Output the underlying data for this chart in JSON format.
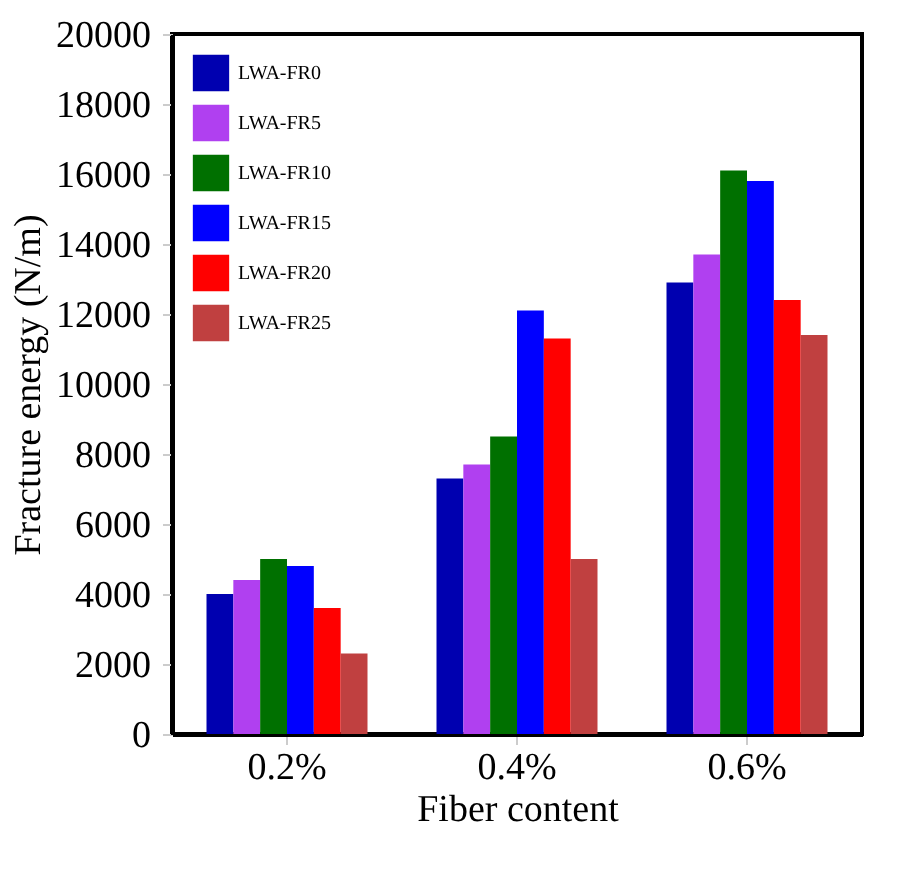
{
  "chart_data": {
    "type": "bar",
    "xlabel": "Fiber content",
    "ylabel": "Fracture energy (N/m)",
    "categories": [
      "0.2%",
      "0.4%",
      "0.6%"
    ],
    "series": [
      {
        "name": "LWA-FR0",
        "color": "#0000b0",
        "values": [
          4000,
          7300,
          12900
        ]
      },
      {
        "name": "LWA-FR5",
        "color": "#b040f0",
        "values": [
          4400,
          7700,
          13700
        ]
      },
      {
        "name": "LWA-FR10",
        "color": "#007000",
        "values": [
          5000,
          8500,
          16100
        ]
      },
      {
        "name": "LWA-FR15",
        "color": "#0000ff",
        "values": [
          4800,
          12100,
          15800
        ]
      },
      {
        "name": "LWA-FR20",
        "color": "#ff0000",
        "values": [
          3600,
          11300,
          12400
        ]
      },
      {
        "name": "LWA-FR25",
        "color": "#c04040",
        "values": [
          2300,
          5000,
          11400
        ]
      }
    ],
    "ylim": [
      0,
      20000
    ],
    "yticks": [
      0,
      2000,
      4000,
      6000,
      8000,
      10000,
      12000,
      14000,
      16000,
      18000,
      20000
    ],
    "grid": false,
    "legend": "top left"
  }
}
